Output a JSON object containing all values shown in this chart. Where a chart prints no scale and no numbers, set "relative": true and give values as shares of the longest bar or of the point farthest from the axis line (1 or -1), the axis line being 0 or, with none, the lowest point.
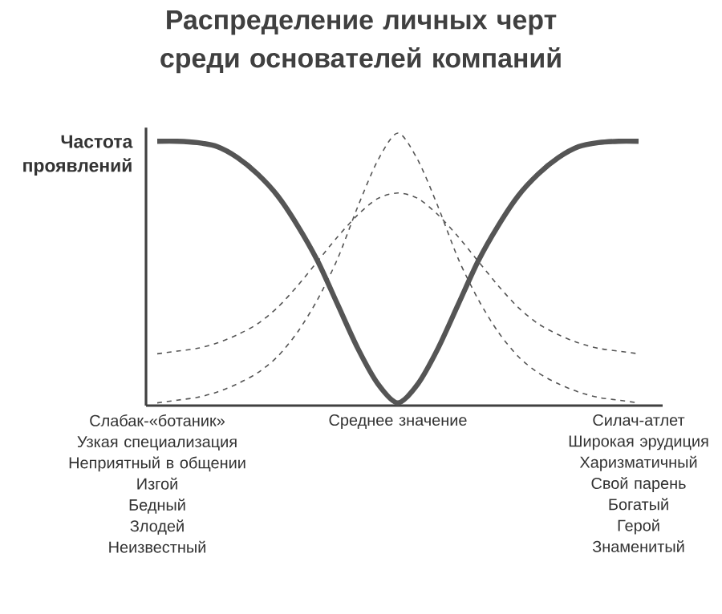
{
  "chart_data": {
    "type": "line",
    "title": "Распределение личных черт\nсреди основателей компаний",
    "ylabel": "Частота\nпроявлений",
    "relative": true,
    "marker": "none",
    "categories": [
      "Слабак-«ботаник»\nУзкая специализация\nНеприятный в общении\nИзгой\nБедный\nЗлодей\nНеизвестный",
      null,
      null,
      null,
      null,
      null,
      null,
      null,
      null,
      null,
      null,
      null,
      "Среднее значение",
      null,
      null,
      null,
      null,
      null,
      null,
      null,
      null,
      null,
      null,
      null,
      "Силач-атлет\nШирокая эрудиция\nХаризматичный\nСвой парень\nБогатый\nГерой\nЗнаменитый"
    ],
    "series": [
      {
        "color": "#555555",
        "line_style": "solid",
        "values": [
          0.97,
          0.97,
          0.965,
          0.95,
          0.91,
          0.85,
          0.77,
          0.66,
          0.53,
          0.37,
          0.21,
          0.08,
          0.01,
          0.08,
          0.21,
          0.37,
          0.53,
          0.66,
          0.77,
          0.85,
          0.91,
          0.95,
          0.965,
          0.97,
          0.97
        ]
      },
      {
        "color": "#555555",
        "line_style": "dashed",
        "values": [
          0.01,
          0.02,
          0.03,
          0.05,
          0.08,
          0.12,
          0.18,
          0.27,
          0.39,
          0.54,
          0.73,
          0.9,
          1,
          0.9,
          0.73,
          0.54,
          0.39,
          0.27,
          0.18,
          0.12,
          0.08,
          0.05,
          0.03,
          0.02,
          0.01
        ]
      },
      {
        "color": "#555555",
        "line_style": "dashed",
        "values": [
          0.19,
          0.2,
          0.21,
          0.23,
          0.26,
          0.3,
          0.36,
          0.44,
          0.53,
          0.62,
          0.7,
          0.76,
          0.78,
          0.76,
          0.7,
          0.62,
          0.53,
          0.44,
          0.36,
          0.3,
          0.26,
          0.23,
          0.21,
          0.2,
          0.19
        ]
      }
    ]
  }
}
